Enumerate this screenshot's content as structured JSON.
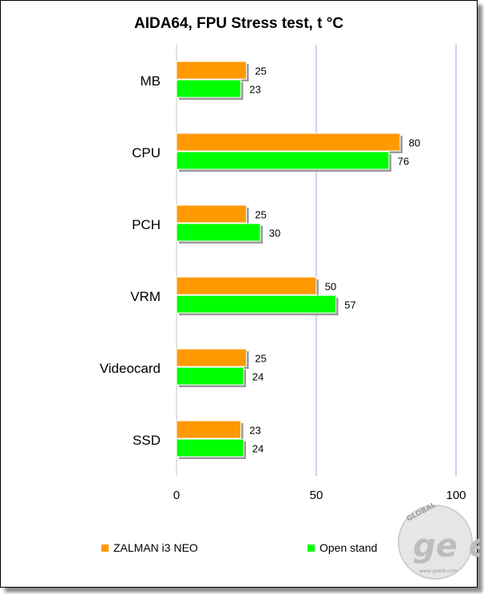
{
  "chart_data": {
    "type": "bar",
    "orientation": "horizontal",
    "title": "AIDA64, FPU Stress test, t °C",
    "categories": [
      "MB",
      "CPU",
      "PCH",
      "VRM",
      "Videocard",
      "SSD"
    ],
    "series": [
      {
        "name": "ZALMAN i3 NEO",
        "color": "#ff9900",
        "values": [
          25,
          80,
          25,
          50,
          25,
          23
        ]
      },
      {
        "name": "Open stand",
        "color": "#00ff00",
        "values": [
          23,
          76,
          30,
          57,
          24,
          24
        ]
      }
    ],
    "xlim": [
      0,
      100
    ],
    "xticks": [
      "0",
      "50",
      "100"
    ],
    "xlabel": "",
    "ylabel": "",
    "grid": true,
    "legend_position": "bottom"
  },
  "watermark": {
    "brand": "GLOBAL",
    "logo": "ge easy",
    "url": "www.geeid.com"
  }
}
